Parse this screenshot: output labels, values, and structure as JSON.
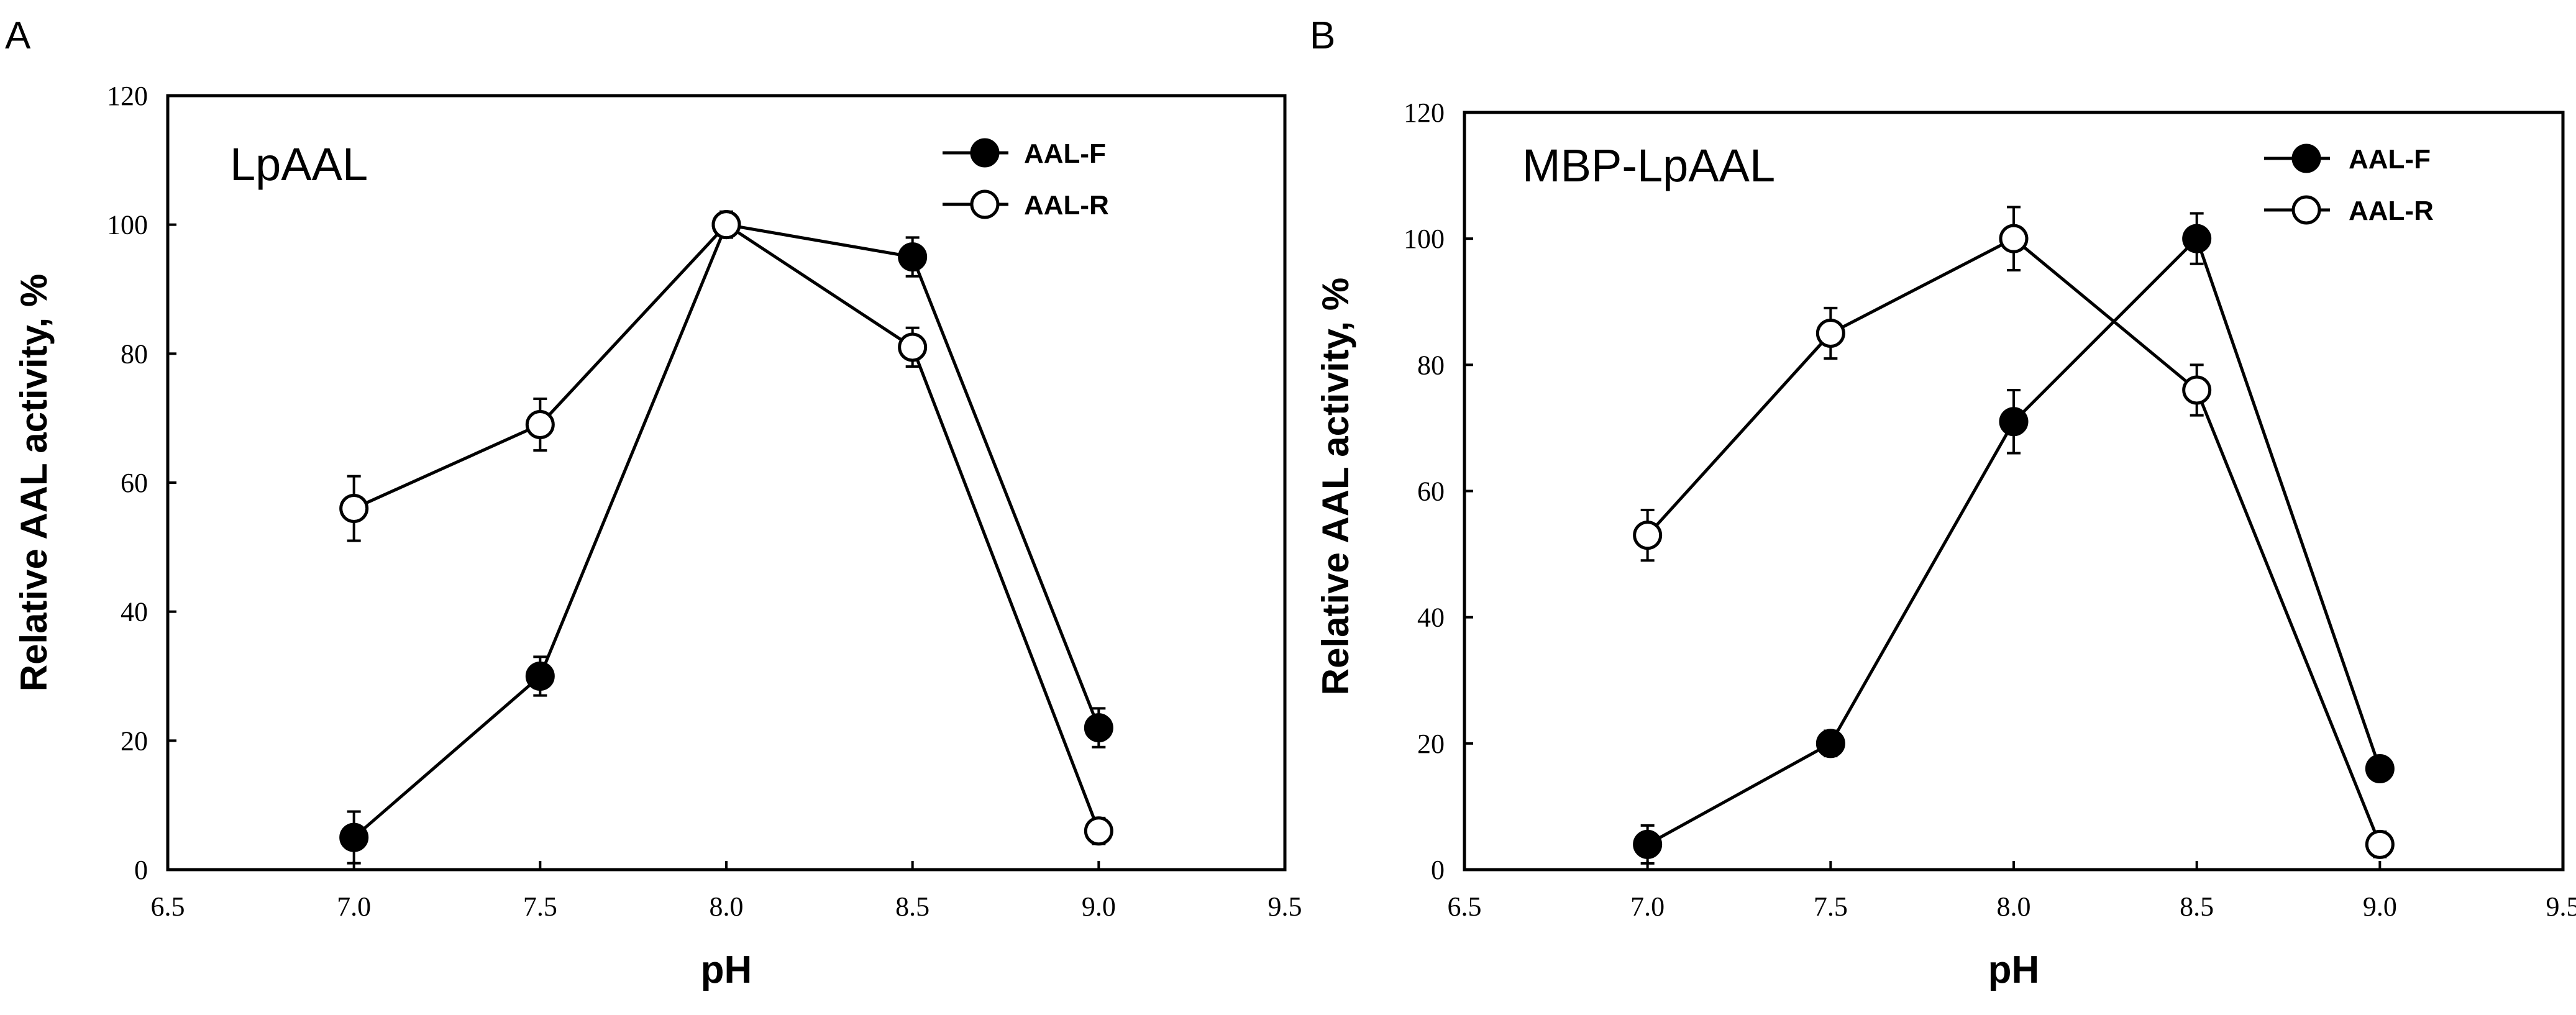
{
  "chart_data": [
    {
      "type": "line",
      "panel_label": "A",
      "title": "LpAAL",
      "xlabel": "pH",
      "ylabel": "Relative AAL activity, %",
      "xlim": [
        6.5,
        9.5
      ],
      "ylim": [
        0,
        120
      ],
      "xticks": [
        "6.5",
        "7.0",
        "7.5",
        "8.0",
        "8.5",
        "9.0",
        "9.5"
      ],
      "yticks": [
        "0",
        "20",
        "40",
        "60",
        "80",
        "100",
        "120"
      ],
      "legend_position": "top-right",
      "grid": false,
      "series": [
        {
          "name": "AAL-F",
          "marker": "filled-circle",
          "x": [
            7.0,
            7.5,
            8.0,
            8.5,
            9.0
          ],
          "y": [
            5,
            30,
            100,
            95,
            22
          ],
          "err": [
            4,
            3,
            2,
            3,
            3
          ]
        },
        {
          "name": "AAL-R",
          "marker": "open-circle",
          "x": [
            7.0,
            7.5,
            8.0,
            8.5,
            9.0
          ],
          "y": [
            56,
            69,
            100,
            81,
            6
          ],
          "err": [
            5,
            4,
            2,
            3,
            2
          ]
        }
      ]
    },
    {
      "type": "line",
      "panel_label": "B",
      "title": "MBP-LpAAL",
      "xlabel": "pH",
      "ylabel": "Relative AAL activity, %",
      "xlim": [
        6.5,
        9.5
      ],
      "ylim": [
        0,
        120
      ],
      "xticks": [
        "6.5",
        "7.0",
        "7.5",
        "8.0",
        "8.5",
        "9.0",
        "9.5"
      ],
      "yticks": [
        "0",
        "20",
        "40",
        "60",
        "80",
        "100",
        "120"
      ],
      "legend_position": "top-right",
      "grid": false,
      "series": [
        {
          "name": "AAL-F",
          "marker": "filled-circle",
          "x": [
            7.0,
            7.5,
            8.0,
            8.5,
            9.0
          ],
          "y": [
            4,
            20,
            71,
            100,
            16
          ],
          "err": [
            3,
            2,
            5,
            4,
            1
          ]
        },
        {
          "name": "AAL-R",
          "marker": "open-circle",
          "x": [
            7.0,
            7.5,
            8.0,
            8.5,
            9.0
          ],
          "y": [
            53,
            85,
            100,
            76,
            4
          ],
          "err": [
            4,
            4,
            5,
            4,
            2
          ]
        }
      ]
    }
  ]
}
